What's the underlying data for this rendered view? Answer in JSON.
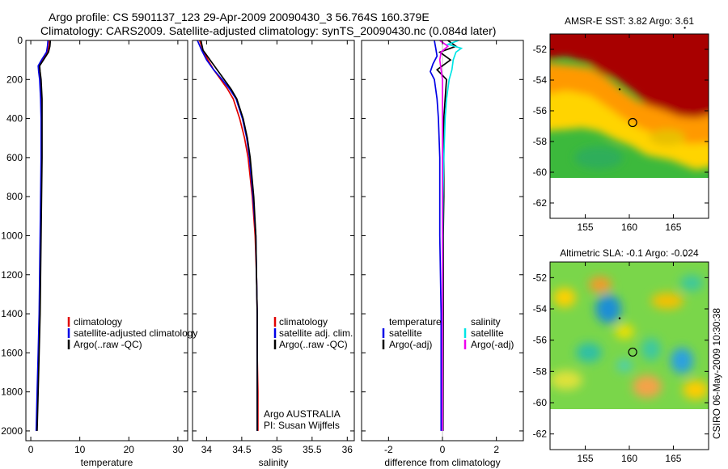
{
  "title": {
    "line1": "Argo profile: CS 5901137_123 29-Apr-2009 20090430_3 56.764S 160.379E",
    "line2": "Climatology: CARS2009. Satellite-adjusted climatology: synTS_20090430.nc (0.084d later)"
  },
  "credit": "CSIRO 06-May-2009 10:30:38",
  "colors": {
    "red": "#e00000",
    "blue": "#0000e6",
    "black": "#000000",
    "cyan": "#00e5e5",
    "magenta": "#ee00ee"
  },
  "chart_data": [
    {
      "type": "line",
      "name": "temperature-profile",
      "xlabel": "temperature",
      "ylabel": "",
      "xlim": [
        -1,
        32
      ],
      "ylim": [
        2050,
        0
      ],
      "xticks": [
        0,
        10,
        20,
        30
      ],
      "yticks": [
        0,
        200,
        400,
        600,
        800,
        1000,
        1200,
        1400,
        1600,
        1800,
        2000
      ],
      "legend": [
        "climatology",
        "satellite-adjusted climatology",
        "Argo(..raw -QC)"
      ],
      "series": [
        {
          "name": "climatology",
          "color": "red",
          "depth": [
            0,
            30,
            60,
            100,
            130,
            160,
            200,
            300,
            400,
            600,
            800,
            1000,
            1200,
            1400,
            1600,
            1800,
            2000
          ],
          "values": [
            3.8,
            3.7,
            3.4,
            2.4,
            1.7,
            1.7,
            1.9,
            2.1,
            2.2,
            2.2,
            2.1,
            2.0,
            1.9,
            1.8,
            1.6,
            1.4,
            1.2
          ]
        },
        {
          "name": "satellite-adjusted climatology",
          "color": "blue",
          "depth": [
            0,
            30,
            60,
            100,
            130,
            160,
            200,
            300,
            400,
            600,
            800,
            1000,
            1200,
            1400,
            1600,
            1800,
            2000
          ],
          "values": [
            3.5,
            3.4,
            3.2,
            2.2,
            1.5,
            1.6,
            1.8,
            2.0,
            2.1,
            2.1,
            2.0,
            1.9,
            1.8,
            1.7,
            1.5,
            1.3,
            1.1
          ]
        },
        {
          "name": "Argo(..raw -QC)",
          "color": "black",
          "depth": [
            0,
            30,
            60,
            100,
            130,
            160,
            200,
            300,
            400,
            600,
            800,
            1000,
            1200,
            1400,
            1600,
            1800,
            2000
          ],
          "values": [
            4.0,
            3.9,
            3.6,
            2.6,
            1.8,
            1.9,
            2.1,
            2.3,
            2.3,
            2.3,
            2.2,
            2.1,
            2.0,
            1.9,
            1.7,
            1.5,
            1.3
          ]
        }
      ]
    },
    {
      "type": "line",
      "name": "salinity-profile",
      "xlabel": "salinity",
      "ylabel": "",
      "xlim": [
        33.8,
        36.1
      ],
      "ylim": [
        2050,
        0
      ],
      "xticks": [
        34,
        34.5,
        35,
        35.5,
        36
      ],
      "xticklabels": [
        "34",
        "34.5",
        "35",
        "35.5",
        "36"
      ],
      "legend": [
        "climatology",
        "satellite adj. clim.",
        "Argo(..raw -QC)"
      ],
      "annotations": [
        "Argo AUSTRALIA",
        "PI: Susan Wijffels"
      ],
      "series": [
        {
          "name": "climatology",
          "color": "red",
          "depth": [
            0,
            50,
            100,
            150,
            200,
            250,
            300,
            400,
            500,
            600,
            800,
            1000,
            1200,
            1400,
            1600,
            1800,
            2000
          ],
          "values": [
            33.9,
            33.95,
            34.02,
            34.1,
            34.2,
            34.3,
            34.38,
            34.47,
            34.54,
            34.59,
            34.65,
            34.69,
            34.71,
            34.72,
            34.72,
            34.73,
            34.73
          ]
        },
        {
          "name": "satellite adj. clim.",
          "color": "blue",
          "depth": [
            0,
            50,
            100,
            150,
            200,
            250,
            300,
            400,
            500,
            600,
            800,
            1000,
            1200,
            1400,
            1600,
            1800,
            2000
          ],
          "values": [
            33.87,
            33.93,
            34.0,
            34.1,
            34.22,
            34.33,
            34.42,
            34.51,
            34.57,
            34.61,
            34.66,
            34.7,
            34.71,
            34.72,
            34.72,
            34.72,
            34.72
          ]
        },
        {
          "name": "Argo(..raw -QC)",
          "color": "black",
          "depth": [
            0,
            50,
            100,
            150,
            200,
            250,
            300,
            400,
            500,
            600,
            800,
            1000,
            1200,
            1400,
            1600,
            1800,
            2000
          ],
          "values": [
            33.92,
            33.95,
            34.05,
            34.15,
            34.25,
            34.35,
            34.43,
            34.52,
            34.58,
            34.62,
            34.67,
            34.7,
            34.71,
            34.72,
            34.72,
            34.72,
            34.72
          ]
        }
      ]
    },
    {
      "type": "line",
      "name": "difference-profile",
      "xlabel": "difference from climatology",
      "ylabel": "",
      "xlim": [
        -3,
        3
      ],
      "ylim": [
        2050,
        0
      ],
      "xticks": [
        -2,
        0,
        2
      ],
      "legend_left_title": "temperature",
      "legend_right_title": "salinity",
      "legend": [
        "satellite",
        "Argo(-adj)",
        "satellite",
        "Argo(-adj)"
      ],
      "series": [
        {
          "name": "temperature satellite",
          "color": "blue",
          "depth": [
            0,
            40,
            80,
            120,
            160,
            200,
            300,
            400,
            600,
            800,
            1000,
            1400,
            2000
          ],
          "values": [
            -0.3,
            -0.25,
            -0.2,
            -0.35,
            -0.45,
            -0.3,
            -0.2,
            -0.15,
            -0.1,
            -0.1,
            -0.1,
            -0.05,
            -0.05
          ]
        },
        {
          "name": "temperature Argo(-adj)",
          "color": "black",
          "depth": [
            0,
            30,
            60,
            100,
            150,
            200,
            300,
            400,
            600,
            800,
            1000,
            1400,
            2000
          ],
          "values": [
            0.2,
            0.5,
            -0.1,
            0.3,
            -0.2,
            0.15,
            0.1,
            0.05,
            0.05,
            0.05,
            0.03,
            0.03,
            0.02
          ]
        },
        {
          "name": "salinity satellite",
          "color": "cyan",
          "depth": [
            0,
            20,
            40,
            60,
            100,
            150,
            200,
            300,
            400,
            600,
            800,
            1000,
            1400,
            2000
          ],
          "values": [
            0.6,
            0.2,
            0.7,
            0.5,
            0.4,
            0.35,
            0.25,
            0.15,
            0.1,
            0.05,
            0.02,
            0.01,
            0.0,
            0.0
          ]
        },
        {
          "name": "salinity Argo(-adj)",
          "color": "magenta",
          "depth": [
            0,
            30,
            60,
            100,
            150,
            200,
            300,
            400,
            600,
            800,
            1000,
            1400,
            2000
          ],
          "values": [
            -0.1,
            0.2,
            -0.05,
            -0.1,
            -0.05,
            0.0,
            0.0,
            0.0,
            0.0,
            0.0,
            0.0,
            0.0,
            0.0
          ]
        }
      ]
    },
    {
      "type": "heatmap",
      "name": "sst-map",
      "title": "AMSR-E SST: 3.82  Argo: 3.61",
      "xlim": [
        151,
        169
      ],
      "ylim": [
        -63,
        -51
      ],
      "xticks": [
        155,
        160,
        165
      ],
      "yticks": [
        -52,
        -54,
        -56,
        -58,
        -60,
        -62
      ],
      "marker": {
        "lon": 160.379,
        "lat": -56.764
      }
    },
    {
      "type": "heatmap",
      "name": "sla-map",
      "title": "Altimetric SLA: -0.1  Argo: -0.024",
      "xlim": [
        151,
        169
      ],
      "ylim": [
        -63,
        -51
      ],
      "xticks": [
        155,
        160,
        165
      ],
      "yticks": [
        -52,
        -54,
        -56,
        -58,
        -60,
        -62
      ],
      "marker": {
        "lon": 160.379,
        "lat": -56.764
      }
    }
  ]
}
